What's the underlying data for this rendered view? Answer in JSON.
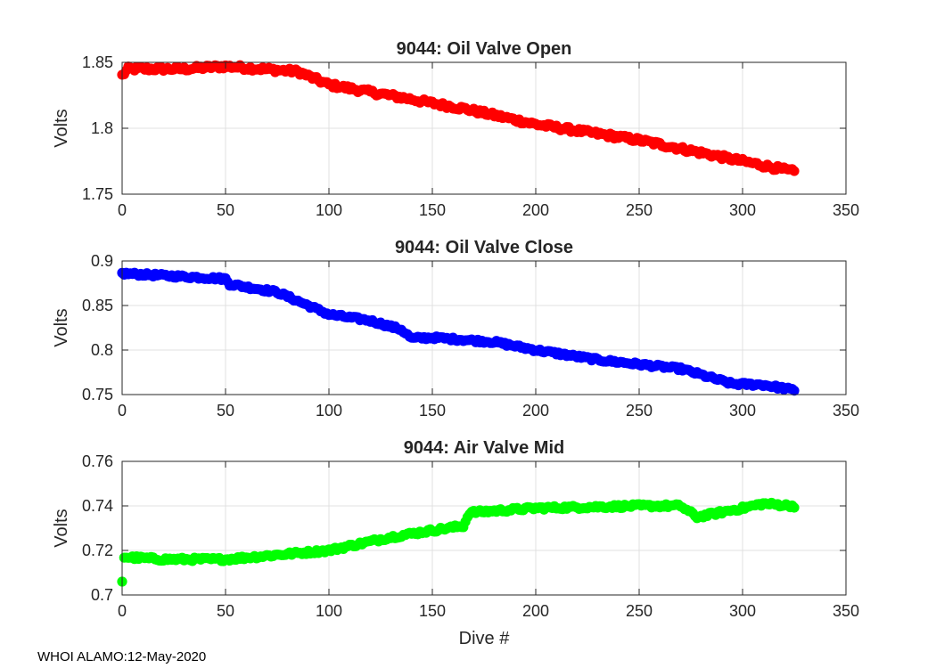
{
  "figure": {
    "xlabel": "Dive #",
    "footer": "WHOI ALAMO:12-May-2020"
  },
  "chart_data": [
    {
      "type": "scatter",
      "title": "9044: Oil Valve Open",
      "ylabel": "Volts",
      "xlabel": "",
      "color": "#ff0000",
      "xlim": [
        0,
        350
      ],
      "ylim": [
        1.75,
        1.85
      ],
      "xticks": [
        0,
        50,
        100,
        150,
        200,
        250,
        300,
        350
      ],
      "yticks": [
        1.75,
        1.8,
        1.85
      ],
      "xtick_labels": [
        "0",
        "50",
        "100",
        "150",
        "200",
        "250",
        "300",
        "350"
      ],
      "ytick_labels": [
        "1.75",
        "1.8",
        "1.85"
      ],
      "grid": true,
      "x_range": [
        0,
        325
      ],
      "trend": [
        [
          0,
          1.84
        ],
        [
          3,
          1.845
        ],
        [
          30,
          1.845
        ],
        [
          50,
          1.847
        ],
        [
          85,
          1.843
        ],
        [
          100,
          1.833
        ],
        [
          140,
          1.822
        ],
        [
          150,
          1.819
        ],
        [
          165,
          1.815
        ],
        [
          200,
          1.803
        ],
        [
          250,
          1.791
        ],
        [
          300,
          1.775
        ],
        [
          325,
          1.767
        ]
      ],
      "noise": 0.0018
    },
    {
      "type": "scatter",
      "title": "9044: Oil Valve Close",
      "ylabel": "Volts",
      "xlabel": "",
      "color": "#0000ff",
      "xlim": [
        0,
        350
      ],
      "ylim": [
        0.75,
        0.9
      ],
      "xticks": [
        0,
        50,
        100,
        150,
        200,
        250,
        300,
        350
      ],
      "yticks": [
        0.75,
        0.8,
        0.85,
        0.9
      ],
      "xtick_labels": [
        "0",
        "50",
        "100",
        "150",
        "200",
        "250",
        "300",
        "350"
      ],
      "ytick_labels": [
        "0.75",
        "0.8",
        "0.85",
        "0.9"
      ],
      "grid": true,
      "x_range": [
        0,
        325
      ],
      "trend": [
        [
          0,
          0.886
        ],
        [
          50,
          0.88
        ],
        [
          52,
          0.874
        ],
        [
          75,
          0.865
        ],
        [
          100,
          0.84
        ],
        [
          120,
          0.833
        ],
        [
          135,
          0.823
        ],
        [
          140,
          0.813
        ],
        [
          150,
          0.814
        ],
        [
          180,
          0.809
        ],
        [
          200,
          0.8
        ],
        [
          230,
          0.789
        ],
        [
          250,
          0.784
        ],
        [
          270,
          0.779
        ],
        [
          295,
          0.762
        ],
        [
          310,
          0.761
        ],
        [
          325,
          0.755
        ]
      ],
      "noise": 0.0018
    },
    {
      "type": "scatter",
      "title": "9044: Air Valve Mid",
      "ylabel": "Volts",
      "xlabel": "Dive #",
      "color": "#00ff00",
      "xlim": [
        0,
        350
      ],
      "ylim": [
        0.7,
        0.76
      ],
      "xticks": [
        0,
        50,
        100,
        150,
        200,
        250,
        300,
        350
      ],
      "yticks": [
        0.7,
        0.72,
        0.74,
        0.76
      ],
      "xtick_labels": [
        "0",
        "50",
        "100",
        "150",
        "200",
        "250",
        "300",
        "350"
      ],
      "ytick_labels": [
        "0.7",
        "0.72",
        "0.74",
        "0.76"
      ],
      "grid": true,
      "x_range": [
        0,
        325
      ],
      "first_point": [
        0,
        0.706
      ],
      "trend": [
        [
          1,
          0.717
        ],
        [
          20,
          0.716
        ],
        [
          50,
          0.716
        ],
        [
          100,
          0.72
        ],
        [
          130,
          0.726
        ],
        [
          150,
          0.729
        ],
        [
          165,
          0.731
        ],
        [
          168,
          0.737
        ],
        [
          200,
          0.739
        ],
        [
          250,
          0.74
        ],
        [
          270,
          0.74
        ],
        [
          278,
          0.735
        ],
        [
          300,
          0.739
        ],
        [
          310,
          0.741
        ],
        [
          325,
          0.74
        ]
      ],
      "noise": 0.0008
    }
  ]
}
